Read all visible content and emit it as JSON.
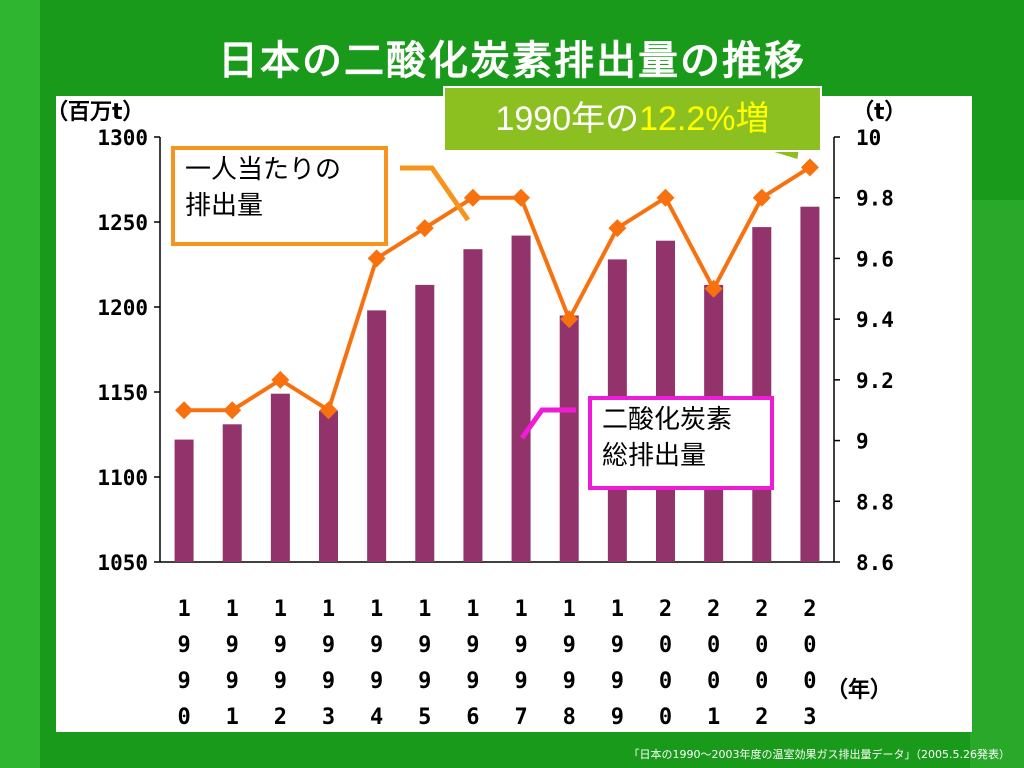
{
  "title": "日本の二酸化炭素排出量の推移",
  "callout": {
    "prefix": "1990年の",
    "highlight": "12.2%増"
  },
  "left_unit": "（百万t）",
  "right_unit": "（t）",
  "x_unit": "（年）",
  "label_per_capita": [
    "一人当たりの",
    "排出量"
  ],
  "label_total": [
    "二酸化炭素",
    "総排出量"
  ],
  "footer": "「日本の1990～2003年度の温室効果ガス排出量データ」（2005.5.26発表）",
  "colors": {
    "bar": "#93336b",
    "line": "#f7720f",
    "background": "#1a9a1a"
  },
  "chart_data": {
    "type": "bar+line",
    "categories": [
      "1990",
      "1991",
      "1992",
      "1993",
      "1994",
      "1995",
      "1996",
      "1997",
      "1998",
      "1999",
      "2000",
      "2001",
      "2002",
      "2003"
    ],
    "series": [
      {
        "name": "二酸化炭素総排出量",
        "type": "bar",
        "axis": "left",
        "values": [
          1122,
          1131,
          1149,
          1139,
          1198,
          1213,
          1234,
          1242,
          1195,
          1228,
          1239,
          1213,
          1247,
          1259
        ]
      },
      {
        "name": "一人当たりの排出量",
        "type": "line",
        "axis": "right",
        "values": [
          9.1,
          9.1,
          9.2,
          9.1,
          9.6,
          9.7,
          9.8,
          9.8,
          9.4,
          9.7,
          9.8,
          9.5,
          9.8,
          9.9
        ]
      }
    ],
    "left_axis": {
      "range": [
        1050,
        1300
      ],
      "ticks": [
        1300,
        1250,
        1200,
        1150,
        1100,
        1050
      ]
    },
    "right_axis": {
      "range": [
        8.6,
        10
      ],
      "ticks": [
        "10",
        "9.8",
        "9.6",
        "9.4",
        "9.2",
        "9",
        "8.8",
        "8.6"
      ]
    },
    "grid": false,
    "legend": "callouts"
  }
}
